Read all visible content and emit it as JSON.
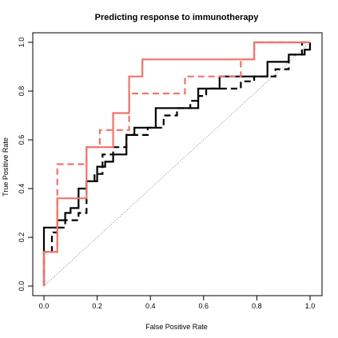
{
  "chart_data": {
    "type": "line",
    "title": "Predicting response to immunotherapy",
    "xlabel": "False Positive Rate",
    "ylabel": "True Positive Rate",
    "xlim": [
      0,
      1
    ],
    "ylim": [
      0,
      1
    ],
    "xticks": [
      "0.0",
      "0.2",
      "0.4",
      "0.6",
      "0.8",
      "1.0"
    ],
    "yticks": [
      "0.0",
      "0.2",
      "0.4",
      "0.6",
      "0.8",
      "1.0"
    ],
    "grid": false,
    "legend": "none",
    "reference_line": {
      "style": "dotted",
      "color": "#8c8c8c",
      "x": [
        0,
        1
      ],
      "y": [
        0,
        1
      ]
    },
    "series": [
      {
        "color": "#000000",
        "style": "solid",
        "x": [
          0,
          0,
          0.05,
          0.05,
          0.08,
          0.08,
          0.1,
          0.1,
          0.13,
          0.13,
          0.16,
          0.16,
          0.2,
          0.2,
          0.23,
          0.23,
          0.26,
          0.26,
          0.31,
          0.31,
          0.34,
          0.34,
          0.42,
          0.42,
          0.58,
          0.58,
          0.66,
          0.66,
          0.84,
          0.84,
          0.92,
          0.92,
          0.98,
          0.98,
          1.0,
          1.0
        ],
        "y": [
          0,
          0.24,
          0.24,
          0.27,
          0.27,
          0.3,
          0.3,
          0.32,
          0.32,
          0.4,
          0.4,
          0.43,
          0.43,
          0.49,
          0.49,
          0.51,
          0.51,
          0.54,
          0.54,
          0.62,
          0.62,
          0.65,
          0.65,
          0.73,
          0.73,
          0.81,
          0.81,
          0.86,
          0.86,
          0.92,
          0.92,
          0.95,
          0.95,
          0.97,
          0.97,
          1.0
        ]
      },
      {
        "color": "#000000",
        "style": "dashed",
        "x": [
          0,
          0,
          0.03,
          0.03,
          0.05,
          0.05,
          0.08,
          0.08,
          0.13,
          0.13,
          0.16,
          0.16,
          0.19,
          0.19,
          0.22,
          0.22,
          0.26,
          0.26,
          0.31,
          0.31,
          0.39,
          0.39,
          0.45,
          0.45,
          0.5,
          0.5,
          0.55,
          0.55,
          0.58,
          0.58,
          0.61,
          0.61,
          0.66,
          0.66,
          0.74,
          0.74,
          0.79,
          0.79,
          0.87,
          0.87,
          0.92,
          0.92,
          0.97,
          0.97,
          1.0
        ],
        "y": [
          0,
          0.14,
          0.14,
          0.22,
          0.22,
          0.24,
          0.24,
          0.27,
          0.27,
          0.3,
          0.3,
          0.43,
          0.43,
          0.46,
          0.46,
          0.54,
          0.54,
          0.57,
          0.57,
          0.62,
          0.62,
          0.65,
          0.65,
          0.7,
          0.7,
          0.73,
          0.73,
          0.76,
          0.76,
          0.78,
          0.78,
          0.81,
          0.81,
          0.81,
          0.81,
          0.84,
          0.84,
          0.86,
          0.86,
          0.89,
          0.89,
          0.95,
          0.95,
          1.0,
          1.0
        ]
      },
      {
        "color": "#f0736a",
        "style": "solid",
        "x": [
          0,
          0,
          0.05,
          0.05,
          0.16,
          0.16,
          0.26,
          0.26,
          0.32,
          0.32,
          0.37,
          0.37,
          0.79,
          0.79,
          1.0
        ],
        "y": [
          0,
          0.14,
          0.14,
          0.36,
          0.36,
          0.57,
          0.57,
          0.71,
          0.71,
          0.86,
          0.86,
          0.93,
          0.93,
          1.0,
          1.0
        ]
      },
      {
        "color": "#f0736a",
        "style": "dashed",
        "x": [
          0,
          0,
          0.05,
          0.05,
          0.16,
          0.16,
          0.21,
          0.21,
          0.32,
          0.32,
          0.42,
          0.42,
          0.53,
          0.53,
          0.74,
          0.74,
          0.79,
          0.79,
          1.0
        ],
        "y": [
          0,
          0.14,
          0.14,
          0.5,
          0.5,
          0.57,
          0.57,
          0.64,
          0.64,
          0.79,
          0.79,
          0.79,
          0.79,
          0.86,
          0.86,
          0.93,
          0.93,
          1.0,
          1.0
        ]
      }
    ]
  }
}
